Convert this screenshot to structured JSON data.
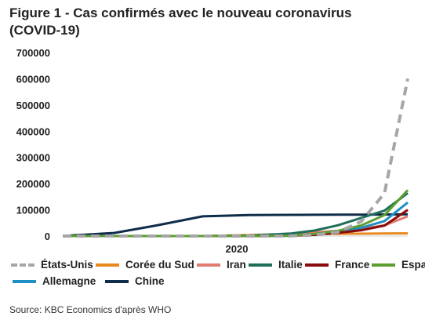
{
  "title": "Figure 1 - Cas confirmés avec le nouveau coronavirus (COVID-19)",
  "source": "Source: KBC Economics d'après WHO",
  "chart_data": {
    "type": "line",
    "x_label_text": "2020",
    "x_dates": [
      "2020-01-21",
      "2020-02-01",
      "2020-02-10",
      "2020-02-20",
      "2020-03-01",
      "2020-03-10",
      "2020-03-15",
      "2020-03-20",
      "2020-03-25",
      "2020-03-30",
      "2020-04-04"
    ],
    "ylim": [
      0,
      700000
    ],
    "yticks": [
      0,
      100000,
      200000,
      300000,
      400000,
      500000,
      600000,
      700000
    ],
    "grid": false,
    "legend_position": "bottom",
    "series": [
      {
        "name": "États-Unis",
        "color": "#a6a6a6",
        "dashed": true,
        "values": [
          0,
          0,
          0,
          0,
          0,
          500,
          3500,
          15000,
          55000,
          163000,
          600000
        ]
      },
      {
        "name": "Corée du Sud",
        "color": "#e8891e",
        "dashed": false,
        "values": [
          0,
          0,
          0,
          100,
          3500,
          7500,
          8100,
          8700,
          9100,
          9700,
          10100
        ]
      },
      {
        "name": "Iran",
        "color": "#e07b6f",
        "dashed": false,
        "values": [
          0,
          0,
          0,
          0,
          980,
          8000,
          14000,
          19600,
          27000,
          41000,
          75000
        ]
      },
      {
        "name": "Italie",
        "color": "#1e6e5a",
        "dashed": false,
        "values": [
          0,
          0,
          0,
          3,
          1700,
          10000,
          21000,
          41000,
          69000,
          97000,
          164000
        ]
      },
      {
        "name": "France",
        "color": "#8b0a0a",
        "dashed": false,
        "values": [
          0,
          5,
          11,
          12,
          130,
          1400,
          4500,
          12000,
          22000,
          40000,
          100000
        ]
      },
      {
        "name": "Espagne",
        "color": "#5c9e2f",
        "dashed": false,
        "values": [
          0,
          0,
          1,
          2,
          80,
          1700,
          7800,
          20000,
          40000,
          80000,
          175000
        ]
      },
      {
        "name": "Allemagne",
        "color": "#1f8fc4",
        "dashed": false,
        "values": [
          0,
          5,
          14,
          16,
          130,
          1200,
          5800,
          15000,
          31000,
          57000,
          128000
        ]
      },
      {
        "name": "Chine",
        "color": "#0f2d4a",
        "dashed": false,
        "values": [
          300,
          11800,
          40000,
          75000,
          79900,
          80800,
          81000,
          81300,
          81800,
          82400,
          83000
        ]
      }
    ]
  }
}
